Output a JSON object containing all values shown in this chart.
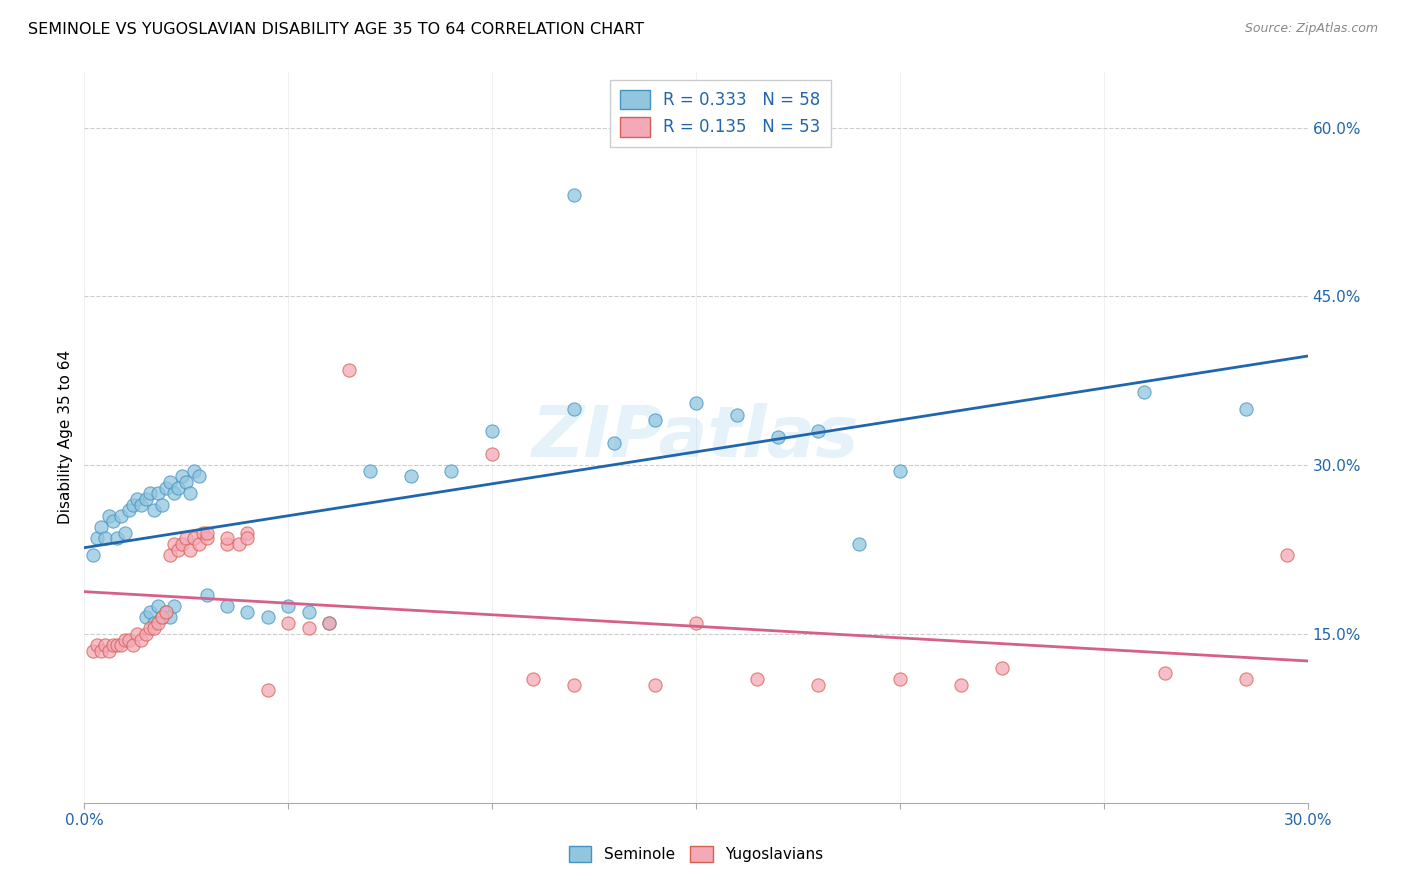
{
  "title": "SEMINOLE VS YUGOSLAVIAN DISABILITY AGE 35 TO 64 CORRELATION CHART",
  "source": "Source: ZipAtlas.com",
  "ylabel": "Disability Age 35 to 64",
  "xlim": [
    0.0,
    0.3
  ],
  "ylim": [
    0.0,
    0.65
  ],
  "x_ticks": [
    0.0,
    0.05,
    0.1,
    0.15,
    0.2,
    0.25,
    0.3
  ],
  "x_tick_labels": [
    "0.0%",
    "",
    "",
    "",
    "",
    "",
    "30.0%"
  ],
  "y_ticks_right": [
    0.15,
    0.3,
    0.45,
    0.6
  ],
  "y_tick_labels_right": [
    "15.0%",
    "30.0%",
    "45.0%",
    "60.0%"
  ],
  "watermark": "ZIPatlas",
  "legend_r1": "0.333",
  "legend_n1": "58",
  "legend_r2": "0.135",
  "legend_n2": "53",
  "seminole_color": "#92c5de",
  "yugoslavian_color": "#f4a9b8",
  "seminole_edge_color": "#4393c3",
  "yugoslavian_edge_color": "#d6604d",
  "seminole_line_color": "#2166ac",
  "yugoslavian_line_color": "#d6608a",
  "label_color": "#2166ac",
  "background_color": "#ffffff",
  "grid_color": "#cccccc",
  "seminole_x": [
    0.002,
    0.003,
    0.004,
    0.005,
    0.006,
    0.007,
    0.008,
    0.009,
    0.01,
    0.011,
    0.012,
    0.013,
    0.014,
    0.015,
    0.016,
    0.017,
    0.018,
    0.019,
    0.02,
    0.021,
    0.022,
    0.023,
    0.024,
    0.025,
    0.026,
    0.027,
    0.028,
    0.015,
    0.016,
    0.017,
    0.018,
    0.019,
    0.02,
    0.021,
    0.022,
    0.03,
    0.035,
    0.04,
    0.045,
    0.05,
    0.055,
    0.06,
    0.07,
    0.08,
    0.09,
    0.1,
    0.12,
    0.13,
    0.14,
    0.15,
    0.16,
    0.17,
    0.18,
    0.19,
    0.2,
    0.26,
    0.285,
    0.12
  ],
  "seminole_y": [
    0.22,
    0.235,
    0.245,
    0.235,
    0.255,
    0.25,
    0.235,
    0.255,
    0.24,
    0.26,
    0.265,
    0.27,
    0.265,
    0.27,
    0.275,
    0.26,
    0.275,
    0.265,
    0.28,
    0.285,
    0.275,
    0.28,
    0.29,
    0.285,
    0.275,
    0.295,
    0.29,
    0.165,
    0.17,
    0.16,
    0.175,
    0.165,
    0.17,
    0.165,
    0.175,
    0.185,
    0.175,
    0.17,
    0.165,
    0.175,
    0.17,
    0.16,
    0.295,
    0.29,
    0.295,
    0.33,
    0.35,
    0.32,
    0.34,
    0.355,
    0.345,
    0.325,
    0.33,
    0.23,
    0.295,
    0.365,
    0.35,
    0.54
  ],
  "yugoslavian_x": [
    0.002,
    0.003,
    0.004,
    0.005,
    0.006,
    0.007,
    0.008,
    0.009,
    0.01,
    0.011,
    0.012,
    0.013,
    0.014,
    0.015,
    0.016,
    0.017,
    0.018,
    0.019,
    0.02,
    0.021,
    0.022,
    0.023,
    0.024,
    0.025,
    0.026,
    0.027,
    0.028,
    0.029,
    0.03,
    0.035,
    0.04,
    0.045,
    0.05,
    0.055,
    0.06,
    0.065,
    0.1,
    0.11,
    0.12,
    0.14,
    0.15,
    0.165,
    0.18,
    0.2,
    0.215,
    0.225,
    0.265,
    0.285,
    0.295,
    0.03,
    0.035,
    0.038,
    0.04
  ],
  "yugoslavian_y": [
    0.135,
    0.14,
    0.135,
    0.14,
    0.135,
    0.14,
    0.14,
    0.14,
    0.145,
    0.145,
    0.14,
    0.15,
    0.145,
    0.15,
    0.155,
    0.155,
    0.16,
    0.165,
    0.17,
    0.22,
    0.23,
    0.225,
    0.23,
    0.235,
    0.225,
    0.235,
    0.23,
    0.24,
    0.235,
    0.23,
    0.24,
    0.1,
    0.16,
    0.155,
    0.16,
    0.385,
    0.31,
    0.11,
    0.105,
    0.105,
    0.16,
    0.11,
    0.105,
    0.11,
    0.105,
    0.12,
    0.115,
    0.11,
    0.22,
    0.24,
    0.235,
    0.23,
    0.235
  ]
}
